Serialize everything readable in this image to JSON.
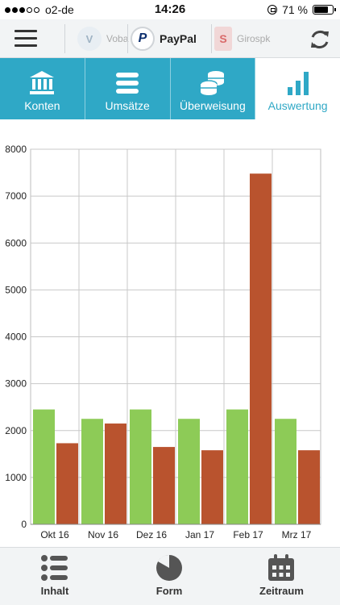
{
  "status_bar": {
    "carrier": "o2-de",
    "time": "14:26",
    "battery": "71 %"
  },
  "banks": [
    {
      "name": "Voba"
    },
    {
      "name": "PayPal"
    },
    {
      "name": "Girospk"
    }
  ],
  "tabs": [
    {
      "label": "Konten",
      "icon": "bank-icon"
    },
    {
      "label": "Umsätze",
      "icon": "list-icon"
    },
    {
      "label": "Überweisung",
      "icon": "coins-icon"
    },
    {
      "label": "Auswertung",
      "icon": "bar-chart-icon",
      "active": true
    }
  ],
  "chart_data": {
    "type": "bar",
    "categories": [
      "Okt 16",
      "Nov 16",
      "Dez 16",
      "Jan 17",
      "Feb 17",
      "Mrz 17"
    ],
    "series": [
      {
        "color": "#8dcb57",
        "values": [
          2450,
          2250,
          2450,
          2250,
          2450,
          2250
        ]
      },
      {
        "color": "#b9532e",
        "values": [
          1730,
          2150,
          1650,
          1580,
          7480,
          1580
        ]
      }
    ],
    "ylim": [
      0,
      8000
    ],
    "yticks": [
      "0",
      "1000",
      "2000",
      "3000",
      "4000",
      "5000",
      "6000",
      "7000",
      "8000"
    ],
    "grid": true,
    "xlabel": "",
    "ylabel": ""
  },
  "bottom_bar": [
    {
      "label": "Inhalt",
      "icon": "content-list-icon"
    },
    {
      "label": "Form",
      "icon": "pie-chart-icon"
    },
    {
      "label": "Zeitraum",
      "icon": "calendar-icon"
    }
  ]
}
